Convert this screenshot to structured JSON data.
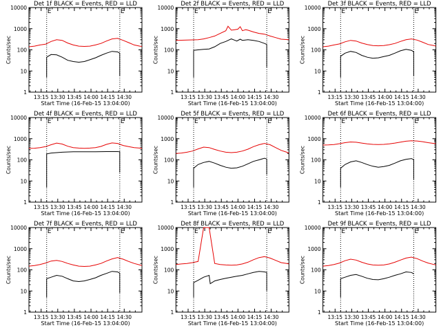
{
  "figure": {
    "xlabel": "Start Time (16-Feb-15 13:04:00)",
    "ylabel": "Counts/sec",
    "x_tick_labels": [
      "13:15",
      "13:30",
      "13:45",
      "14:00",
      "14:15",
      "14:30"
    ],
    "y_tick_labels": [
      "1",
      "10",
      "100",
      "1000",
      "10000"
    ],
    "marker_labels": [
      "E",
      "E"
    ],
    "colors": {
      "events": "#000000",
      "lld": "#e60000",
      "axes": "#000000",
      "markers": "#000000"
    }
  },
  "chart_data": [
    {
      "type": "line",
      "title": "Det 1f BLACK = Events, RED = LLD",
      "xlabel": "Start Time (16-Feb-15 13:04:00)",
      "ylabel": "Counts/sec",
      "x_unit": "minutes since 13:04:00",
      "xlim": [
        0,
        102
      ],
      "ylim": [
        1,
        10000
      ],
      "y_scale": "log",
      "markers_x": [
        16,
        82
      ],
      "series": [
        {
          "name": "Events",
          "color": "#000000",
          "start_x": 16,
          "end_x": 82,
          "x": [
            16,
            20,
            25,
            30,
            35,
            40,
            45,
            50,
            55,
            60,
            65,
            70,
            75,
            80,
            82
          ],
          "values": [
            45,
            60,
            58,
            45,
            32,
            28,
            26,
            28,
            34,
            42,
            55,
            70,
            85,
            80,
            70
          ],
          "drop_end": 6
        },
        {
          "name": "LLD",
          "color": "#e60000",
          "start_x": 0,
          "end_x": 102,
          "x": [
            0,
            5,
            10,
            15,
            20,
            25,
            30,
            35,
            40,
            45,
            50,
            55,
            60,
            65,
            70,
            75,
            80,
            85,
            90,
            95,
            100,
            102
          ],
          "values": [
            140,
            150,
            170,
            185,
            250,
            300,
            280,
            210,
            170,
            150,
            145,
            150,
            170,
            200,
            260,
            330,
            350,
            280,
            220,
            170,
            150,
            145
          ]
        }
      ]
    },
    {
      "type": "line",
      "title": "Det 2f BLACK = Events, RED = LLD",
      "xlabel": "Start Time (16-Feb-15 13:04:00)",
      "ylabel": "Counts/sec",
      "x_unit": "minutes since 13:04:00",
      "xlim": [
        0,
        102
      ],
      "ylim": [
        1,
        10000
      ],
      "y_scale": "log",
      "markers_x": [
        16,
        82
      ],
      "series": [
        {
          "name": "Events",
          "color": "#000000",
          "start_x": 16,
          "end_x": 82,
          "x": [
            16,
            20,
            25,
            30,
            35,
            40,
            45,
            50,
            52,
            55,
            58,
            60,
            65,
            70,
            75,
            80,
            82
          ],
          "values": [
            95,
            100,
            105,
            110,
            140,
            200,
            250,
            330,
            300,
            260,
            320,
            280,
            300,
            280,
            250,
            200,
            180
          ],
          "drop_end": 15
        },
        {
          "name": "LLD",
          "color": "#e60000",
          "start_x": 0,
          "end_x": 102,
          "x": [
            0,
            10,
            20,
            25,
            30,
            35,
            40,
            45,
            47,
            50,
            53,
            56,
            58,
            60,
            63,
            65,
            70,
            75,
            80,
            85,
            90,
            95,
            102
          ],
          "values": [
            280,
            290,
            300,
            330,
            380,
            450,
            600,
            800,
            1300,
            850,
            900,
            950,
            1250,
            800,
            900,
            850,
            700,
            600,
            550,
            450,
            380,
            320,
            300
          ]
        }
      ]
    },
    {
      "type": "line",
      "title": "Det 3f BLACK = Events, RED = LLD",
      "xlabel": "Start Time (16-Feb-15 13:04:00)",
      "ylabel": "Counts/sec",
      "x_unit": "minutes since 13:04:00",
      "xlim": [
        0,
        102
      ],
      "ylim": [
        1,
        10000
      ],
      "y_scale": "log",
      "markers_x": [
        16,
        82
      ],
      "series": [
        {
          "name": "Events",
          "color": "#000000",
          "start_x": 16,
          "end_x": 82,
          "x": [
            16,
            20,
            25,
            30,
            35,
            40,
            45,
            50,
            55,
            60,
            65,
            70,
            75,
            80,
            82
          ],
          "values": [
            50,
            70,
            85,
            75,
            55,
            45,
            40,
            42,
            48,
            55,
            70,
            90,
            105,
            95,
            80
          ],
          "drop_end": 6
        },
        {
          "name": "LLD",
          "color": "#e60000",
          "start_x": 0,
          "end_x": 102,
          "x": [
            0,
            5,
            10,
            15,
            20,
            25,
            30,
            35,
            40,
            45,
            50,
            55,
            60,
            65,
            70,
            75,
            80,
            85,
            90,
            95,
            100,
            102
          ],
          "values": [
            140,
            150,
            170,
            190,
            240,
            280,
            260,
            210,
            180,
            160,
            155,
            160,
            175,
            200,
            250,
            300,
            330,
            290,
            230,
            180,
            160,
            150
          ]
        }
      ]
    },
    {
      "type": "line",
      "title": "Det 4f BLACK = Events, RED = LLD",
      "xlabel": "Start Time (16-Feb-15 13:04:00)",
      "ylabel": "Counts/sec",
      "x_unit": "minutes since 13:04:00",
      "xlim": [
        0,
        102
      ],
      "ylim": [
        1,
        10000
      ],
      "y_scale": "log",
      "markers_x": [
        16,
        82
      ],
      "series": [
        {
          "name": "Events",
          "color": "#000000",
          "start_x": 16,
          "end_x": 82,
          "x": [
            16,
            20,
            30,
            40,
            50,
            60,
            70,
            80,
            82
          ],
          "values": [
            190,
            210,
            230,
            240,
            240,
            240,
            245,
            245,
            240
          ],
          "drop_end": 25
        },
        {
          "name": "LLD",
          "color": "#e60000",
          "start_x": 0,
          "end_x": 102,
          "x": [
            0,
            5,
            10,
            15,
            20,
            25,
            30,
            35,
            40,
            45,
            50,
            55,
            60,
            65,
            70,
            75,
            80,
            85,
            90,
            95,
            100,
            102
          ],
          "values": [
            350,
            355,
            380,
            420,
            520,
            620,
            560,
            440,
            380,
            360,
            350,
            360,
            380,
            430,
            540,
            630,
            600,
            480,
            420,
            380,
            360,
            350
          ]
        }
      ]
    },
    {
      "type": "line",
      "title": "Det 5f BLACK = Events, RED = LLD",
      "xlabel": "Start Time (16-Feb-15 13:04:00)",
      "ylabel": "Counts/sec",
      "x_unit": "minutes since 13:04:00",
      "xlim": [
        0,
        102
      ],
      "ylim": [
        1,
        10000
      ],
      "y_scale": "log",
      "markers_x": [
        16,
        82
      ],
      "series": [
        {
          "name": "Events",
          "color": "#000000",
          "start_x": 16,
          "end_x": 82,
          "x": [
            16,
            20,
            25,
            30,
            35,
            40,
            45,
            50,
            55,
            60,
            65,
            70,
            75,
            80,
            82
          ],
          "values": [
            40,
            60,
            75,
            85,
            70,
            55,
            45,
            40,
            42,
            50,
            65,
            85,
            100,
            120,
            110
          ],
          "drop_end": 20
        },
        {
          "name": "LLD",
          "color": "#e60000",
          "start_x": 0,
          "end_x": 102,
          "x": [
            0,
            5,
            10,
            15,
            20,
            25,
            30,
            35,
            40,
            45,
            50,
            55,
            60,
            65,
            70,
            75,
            80,
            85,
            90,
            95,
            100,
            102
          ],
          "values": [
            200,
            210,
            230,
            260,
            330,
            400,
            380,
            310,
            260,
            230,
            220,
            230,
            260,
            320,
            420,
            520,
            600,
            520,
            380,
            280,
            230,
            210
          ]
        }
      ]
    },
    {
      "type": "line",
      "title": "Det 6f BLACK = Events, RED = LLD",
      "xlabel": "Start Time (16-Feb-15 13:04:00)",
      "ylabel": "Counts/sec",
      "x_unit": "minutes since 13:04:00",
      "xlim": [
        0,
        102
      ],
      "ylim": [
        1,
        10000
      ],
      "y_scale": "log",
      "markers_x": [
        16,
        82
      ],
      "series": [
        {
          "name": "Events",
          "color": "#000000",
          "start_x": 16,
          "end_x": 82,
          "x": [
            16,
            20,
            25,
            30,
            35,
            40,
            45,
            50,
            55,
            60,
            65,
            70,
            75,
            80,
            82
          ],
          "values": [
            40,
            60,
            80,
            90,
            75,
            60,
            50,
            45,
            48,
            55,
            70,
            90,
            105,
            115,
            100
          ],
          "drop_end": 12
        },
        {
          "name": "LLD",
          "color": "#e60000",
          "start_x": 0,
          "end_x": 102,
          "x": [
            0,
            5,
            10,
            15,
            20,
            25,
            30,
            35,
            40,
            45,
            50,
            55,
            60,
            65,
            70,
            75,
            80,
            85,
            90,
            95,
            100,
            102
          ],
          "values": [
            500,
            510,
            530,
            580,
            650,
            700,
            680,
            620,
            570,
            540,
            530,
            540,
            570,
            620,
            690,
            760,
            800,
            780,
            720,
            650,
            600,
            580
          ]
        }
      ]
    },
    {
      "type": "line",
      "title": "Det 7f BLACK = Events, RED = LLD",
      "xlabel": "Start Time (16-Feb-15 13:04:00)",
      "ylabel": "Counts/sec",
      "x_unit": "minutes since 13:04:00",
      "xlim": [
        0,
        102
      ],
      "ylim": [
        1,
        10000
      ],
      "y_scale": "log",
      "markers_x": [
        16,
        82
      ],
      "series": [
        {
          "name": "Events",
          "color": "#000000",
          "start_x": 16,
          "end_x": 82,
          "x": [
            16,
            20,
            25,
            30,
            35,
            40,
            45,
            50,
            55,
            60,
            65,
            70,
            75,
            80,
            82
          ],
          "values": [
            38,
            45,
            55,
            50,
            38,
            30,
            28,
            30,
            35,
            42,
            55,
            68,
            85,
            80,
            70
          ],
          "drop_end": 8
        },
        {
          "name": "LLD",
          "color": "#e60000",
          "start_x": 0,
          "end_x": 102,
          "x": [
            0,
            5,
            10,
            15,
            20,
            25,
            30,
            35,
            40,
            45,
            50,
            55,
            60,
            65,
            70,
            75,
            80,
            85,
            90,
            95,
            100,
            102
          ],
          "values": [
            150,
            160,
            180,
            210,
            260,
            280,
            250,
            200,
            170,
            150,
            145,
            150,
            170,
            200,
            260,
            330,
            380,
            320,
            250,
            200,
            170,
            160
          ]
        }
      ]
    },
    {
      "type": "line",
      "title": "Det 8f BLACK = Events, RED = LLD",
      "xlabel": "Start Time (16-Feb-15 13:04:00)",
      "ylabel": "Counts/sec",
      "x_unit": "minutes since 13:04:00",
      "xlim": [
        0,
        102
      ],
      "ylim": [
        1,
        10000
      ],
      "y_scale": "log",
      "markers_x": [
        16,
        82
      ],
      "series": [
        {
          "name": "Events",
          "color": "#000000",
          "start_x": 16,
          "end_x": 82,
          "x": [
            16,
            20,
            25,
            30,
            31,
            35,
            40,
            45,
            50,
            55,
            60,
            65,
            70,
            75,
            80,
            82
          ],
          "values": [
            25,
            32,
            45,
            55,
            22,
            30,
            35,
            40,
            45,
            50,
            55,
            65,
            75,
            85,
            80,
            75
          ],
          "drop_end": 10
        },
        {
          "name": "LLD",
          "color": "#e60000",
          "start_x": 0,
          "end_x": 102,
          "x": [
            0,
            5,
            10,
            15,
            20,
            25,
            30,
            35,
            40,
            45,
            50,
            55,
            60,
            65,
            70,
            75,
            80,
            85,
            90,
            95,
            100,
            102
          ],
          "values": [
            180,
            190,
            200,
            220,
            250,
            10000,
            10000,
            200,
            180,
            170,
            165,
            170,
            190,
            230,
            300,
            380,
            420,
            360,
            280,
            220,
            200,
            190
          ]
        }
      ]
    },
    {
      "type": "line",
      "title": "Det 9f BLACK = Events, RED = LLD",
      "xlabel": "Start Time (16-Feb-15 13:04:00)",
      "ylabel": "Counts/sec",
      "x_unit": "minutes since 13:04:00",
      "xlim": [
        0,
        102
      ],
      "ylim": [
        1,
        10000
      ],
      "y_scale": "log",
      "markers_x": [
        16,
        82
      ],
      "series": [
        {
          "name": "Events",
          "color": "#000000",
          "start_x": 16,
          "end_x": 82,
          "x": [
            16,
            20,
            25,
            30,
            35,
            40,
            45,
            50,
            55,
            60,
            65,
            70,
            75,
            80,
            82
          ],
          "values": [
            38,
            45,
            55,
            60,
            50,
            40,
            35,
            34,
            38,
            45,
            55,
            65,
            80,
            75,
            65
          ],
          "drop_end": null
        },
        {
          "name": "LLD",
          "color": "#e60000",
          "start_x": 0,
          "end_x": 102,
          "x": [
            0,
            5,
            10,
            15,
            20,
            25,
            30,
            35,
            40,
            45,
            50,
            55,
            60,
            65,
            70,
            75,
            80,
            85,
            90,
            95,
            100,
            102
          ],
          "values": [
            150,
            160,
            180,
            210,
            270,
            320,
            290,
            230,
            190,
            170,
            165,
            170,
            190,
            230,
            290,
            360,
            400,
            340,
            260,
            210,
            180,
            170
          ]
        }
      ]
    }
  ]
}
